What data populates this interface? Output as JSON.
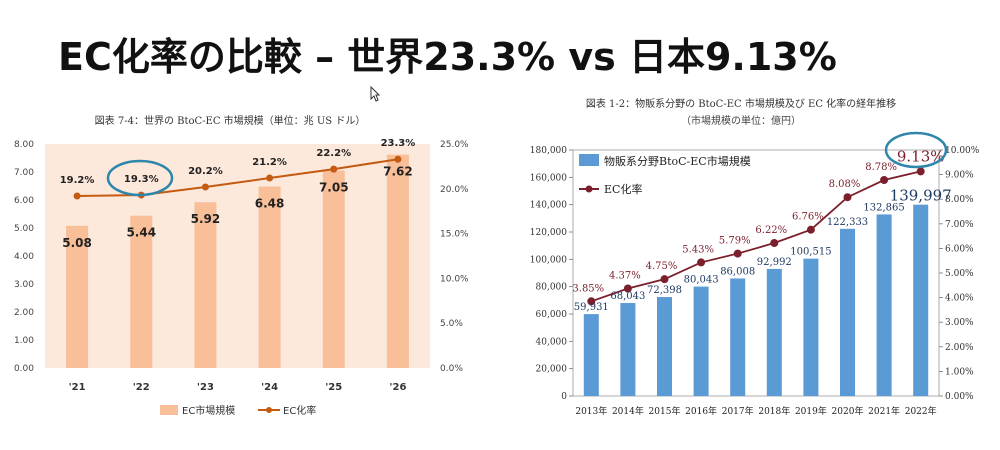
{
  "slide": {
    "title": "EC化率の比較 – 世界23.3% vs 日本9.13%"
  },
  "colors": {
    "left_bar": "#f8bf98",
    "left_line": "#c55a11",
    "left_bg": "#fde9dc",
    "highlight_ring": "#2e86ab",
    "right_bar": "#5b9bd5",
    "right_line": "#7b1f2c"
  },
  "chart_data": [
    {
      "type": "bar",
      "title": "図表 7-4：世界の BtoC-EC 市場規模（単位：兆 US ドル）",
      "categories": [
        "'21",
        "'22",
        "'23",
        "'24",
        "'25",
        "'26"
      ],
      "series": [
        {
          "name": "EC市場規模",
          "type": "bar",
          "axis": "left",
          "values": [
            5.08,
            5.44,
            5.92,
            6.48,
            7.05,
            7.62
          ]
        },
        {
          "name": "EC化率",
          "type": "line",
          "axis": "right",
          "values": [
            19.2,
            19.3,
            20.2,
            21.2,
            22.2,
            23.3
          ]
        }
      ],
      "value_labels": [
        "5.08",
        "5.44",
        "5.92",
        "6.48",
        "7.05",
        "7.62"
      ],
      "rate_labels": [
        "19.2%",
        "19.3%",
        "20.2%",
        "21.2%",
        "22.2%",
        "23.3%"
      ],
      "left_ticks": [
        "0.00",
        "1.00",
        "2.00",
        "3.00",
        "4.00",
        "5.00",
        "6.00",
        "7.00",
        "8.00"
      ],
      "right_ticks": [
        "0.0%",
        "5.0%",
        "10.0%",
        "15.0%",
        "20.0%",
        "25.0%"
      ],
      "ylim_left": [
        0,
        8
      ],
      "ylim_right": [
        0,
        25
      ],
      "legend": [
        "EC市場規模",
        "EC化率"
      ],
      "legend_position": "bottom",
      "highlight": "19.3%"
    },
    {
      "type": "bar",
      "title": "図表 1-2：物販系分野の BtoC-EC 市場規模及び EC 化率の経年推移",
      "subtitle": "（市場規模の単位：億円）",
      "categories": [
        "2013年",
        "2014年",
        "2015年",
        "2016年",
        "2017年",
        "2018年",
        "2019年",
        "2020年",
        "2021年",
        "2022年"
      ],
      "series": [
        {
          "name": "物販系分野BtoC-EC市場規模",
          "type": "bar",
          "axis": "left",
          "values": [
            59931,
            68043,
            72398,
            80043,
            86008,
            92992,
            100515,
            122333,
            132865,
            139997
          ]
        },
        {
          "name": "EC化率",
          "type": "line",
          "axis": "right",
          "values": [
            3.85,
            4.37,
            4.75,
            5.43,
            5.79,
            6.22,
            6.76,
            8.08,
            8.78,
            9.13
          ]
        }
      ],
      "value_labels": [
        "59,931",
        "68,043",
        "72,398",
        "80,043",
        "86,008",
        "92,992",
        "100,515",
        "122,333",
        "132,865",
        "139,997"
      ],
      "rate_labels": [
        "3.85%",
        "4.37%",
        "4.75%",
        "5.43%",
        "5.79%",
        "6.22%",
        "6.76%",
        "8.08%",
        "8.78%",
        "9.13%"
      ],
      "left_ticks": [
        "0",
        "20,000",
        "40,000",
        "60,000",
        "80,000",
        "100,000",
        "120,000",
        "140,000",
        "160,000",
        "180,000"
      ],
      "right_ticks": [
        "0.00%",
        "1.00%",
        "2.00%",
        "3.00%",
        "4.00%",
        "5.00%",
        "6.00%",
        "7.00%",
        "8.00%",
        "9.00%",
        "10.00%"
      ],
      "ylim_left": [
        0,
        180000
      ],
      "ylim_right": [
        0,
        10
      ],
      "legend": [
        "物販系分野BtoC-EC市場規模",
        "EC化率"
      ],
      "legend_position": "top-left",
      "highlight": "9.13%"
    }
  ]
}
